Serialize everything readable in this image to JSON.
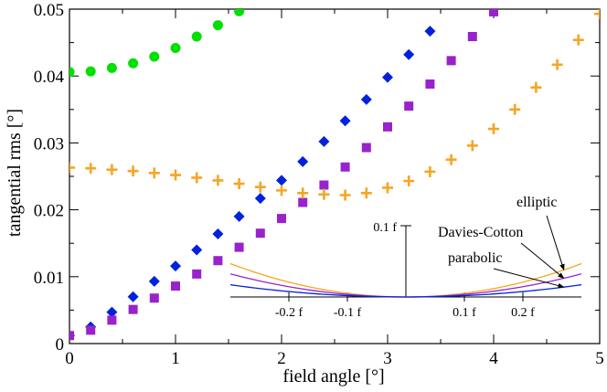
{
  "chart_data": {
    "type": "scatter",
    "xlabel": "field angle [°]",
    "ylabel": "tangential rms [°]",
    "xlim": [
      0,
      5
    ],
    "ylim": [
      0,
      0.05
    ],
    "xticks": [
      "0",
      "1",
      "2",
      "3",
      "4",
      "5"
    ],
    "yticks": [
      "0",
      "0.01",
      "0.02",
      "0.03",
      "0.04",
      "0.05"
    ],
    "series": [
      {
        "name": "green circles",
        "marker": "circle",
        "color": "#00e000",
        "x": [
          0,
          0.2,
          0.4,
          0.6,
          0.8,
          1.0,
          1.2,
          1.4,
          1.6
        ],
        "y": [
          0.0406,
          0.0407,
          0.0412,
          0.0419,
          0.0429,
          0.0442,
          0.0459,
          0.0476,
          0.0497
        ]
      },
      {
        "name": "blue diamonds",
        "marker": "diamond",
        "color": "#0022dd",
        "x": [
          0,
          0.2,
          0.4,
          0.6,
          0.8,
          1.0,
          1.2,
          1.4,
          1.6,
          1.8,
          2.0,
          2.2,
          2.4,
          2.6,
          2.8,
          3.0,
          3.2,
          3.4
        ],
        "y": [
          0.0012,
          0.0025,
          0.0047,
          0.007,
          0.0093,
          0.0116,
          0.014,
          0.0164,
          0.019,
          0.0217,
          0.0244,
          0.0272,
          0.0302,
          0.0333,
          0.0365,
          0.0398,
          0.0432,
          0.0467
        ]
      },
      {
        "name": "purple squares",
        "marker": "square",
        "color": "#9922cc",
        "x": [
          0,
          0.2,
          0.4,
          0.6,
          0.8,
          1.0,
          1.2,
          1.4,
          1.6,
          1.8,
          2.0,
          2.2,
          2.4,
          2.6,
          2.8,
          3.0,
          3.2,
          3.4,
          3.6,
          3.8,
          4.0
        ],
        "y": [
          0.0012,
          0.002,
          0.0035,
          0.0051,
          0.0068,
          0.0086,
          0.0104,
          0.0124,
          0.0144,
          0.0165,
          0.0187,
          0.0211,
          0.0237,
          0.0264,
          0.0293,
          0.0324,
          0.0355,
          0.0388,
          0.0423,
          0.0459,
          0.0496
        ]
      },
      {
        "name": "orange plus",
        "marker": "plus",
        "color": "#f5a623",
        "x": [
          0,
          0.2,
          0.4,
          0.6,
          0.8,
          1.0,
          1.2,
          1.4,
          1.6,
          1.8,
          2.0,
          2.2,
          2.4,
          2.6,
          2.8,
          3.0,
          3.2,
          3.4,
          3.6,
          3.8,
          4.0,
          4.2,
          4.4,
          4.6,
          4.8,
          5.0
        ],
        "y": [
          0.0263,
          0.0262,
          0.026,
          0.0258,
          0.0255,
          0.0252,
          0.0248,
          0.0244,
          0.0239,
          0.0234,
          0.0229,
          0.0225,
          0.0223,
          0.0222,
          0.0225,
          0.0233,
          0.0243,
          0.0257,
          0.0275,
          0.0296,
          0.0321,
          0.035,
          0.0383,
          0.0417,
          0.0454,
          0.0493
        ]
      }
    ],
    "inset": {
      "xlim": [
        -0.3,
        0.3
      ],
      "ylim": [
        0,
        0.1
      ],
      "xticks": [
        "-0.2 f",
        "-0.1 f",
        "0.1 f",
        "0.2 f"
      ],
      "xtick_values": [
        -0.2,
        -0.1,
        0.1,
        0.2
      ],
      "ytick_label": "0.1 f",
      "curves": [
        {
          "name": "elliptic",
          "color": "#f5a623",
          "coef": 0.52
        },
        {
          "name": "Davies-Cotton",
          "color": "#9922cc",
          "coef": 0.36
        },
        {
          "name": "parabolic",
          "color": "#0022dd",
          "coef": 0.19
        }
      ]
    }
  }
}
